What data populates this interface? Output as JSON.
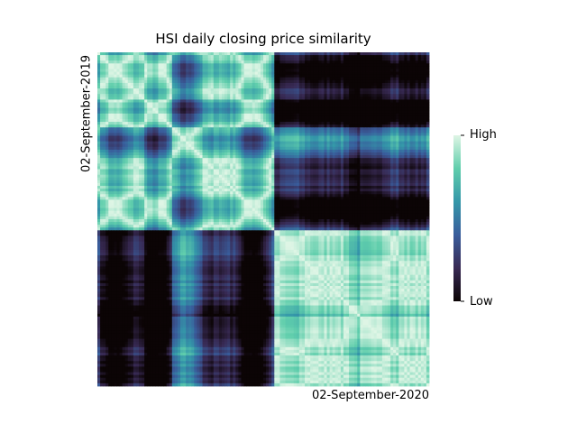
{
  "chart_data": {
    "type": "heatmap",
    "title": "HSI daily closing price similarity",
    "xlabel": "02-September-2020",
    "ylabel": "02-September-2019",
    "colormap": "mako",
    "colorbar": {
      "high_label": "High",
      "low_label": "Low",
      "colors": [
        "#0b0405",
        "#382a54",
        "#395d9c",
        "#3497a9",
        "#60ceac",
        "#def5e5"
      ]
    },
    "grid": false,
    "regime_split_fraction": 0.53,
    "grid_size": 120
  }
}
